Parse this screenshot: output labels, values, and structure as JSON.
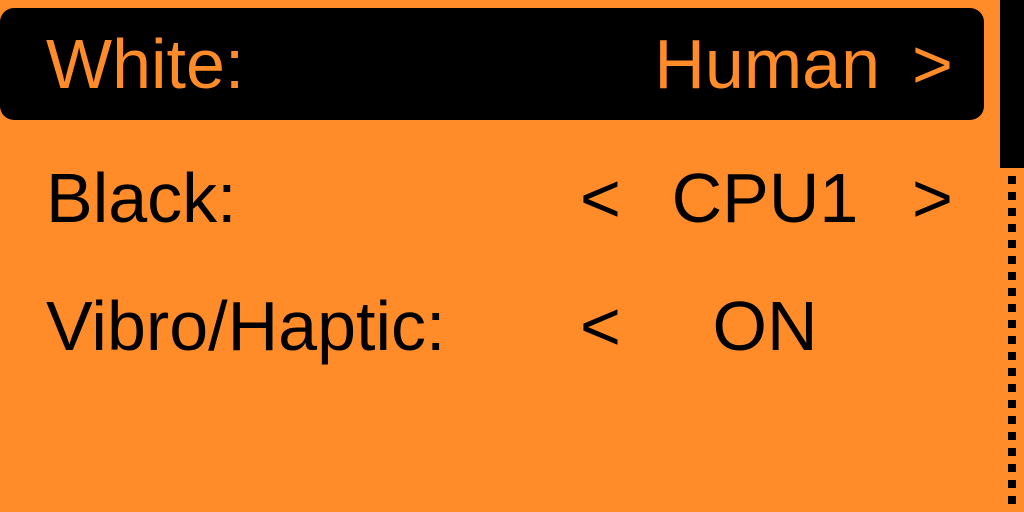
{
  "settings": [
    {
      "label": "White:",
      "value": "Human",
      "left_arrow": "",
      "right_arrow": ">",
      "selected": true
    },
    {
      "label": "Black:",
      "value": "CPU1",
      "left_arrow": "<",
      "right_arrow": ">",
      "selected": false
    },
    {
      "label": "Vibro/Haptic:",
      "value": "ON",
      "left_arrow": "<",
      "right_arrow": "",
      "selected": false
    }
  ],
  "colors": {
    "background": "#FF8C29",
    "foreground": "#000000"
  },
  "scrollbar": {
    "position": "top"
  }
}
